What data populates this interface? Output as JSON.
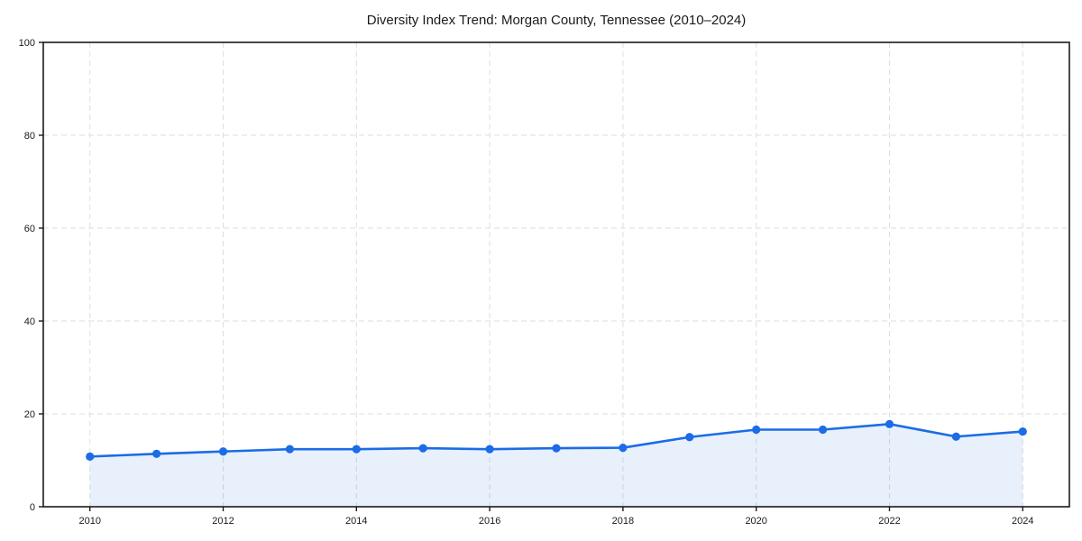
{
  "chart_data": {
    "type": "line",
    "title": "Diversity Index Trend: Morgan County, Tennessee (2010–2024)",
    "xlabel": "",
    "ylabel": "",
    "x": [
      2010,
      2011,
      2012,
      2013,
      2014,
      2015,
      2016,
      2017,
      2018,
      2019,
      2020,
      2021,
      2022,
      2023,
      2024
    ],
    "series": [
      {
        "name": "Diversity Index",
        "values": [
          10.8,
          11.4,
          11.9,
          12.4,
          12.4,
          12.6,
          12.4,
          12.6,
          12.7,
          15.0,
          16.6,
          16.6,
          17.8,
          15.1,
          16.2
        ]
      }
    ],
    "xlim": [
      2009.3,
      2024.7
    ],
    "ylim": [
      0,
      100
    ],
    "x_ticks": [
      2010,
      2012,
      2014,
      2016,
      2018,
      2020,
      2022,
      2024
    ],
    "y_ticks": [
      0,
      20,
      40,
      60,
      80,
      100
    ],
    "grid": true,
    "grid_style": "dashed",
    "legend": "none",
    "marker": "circle",
    "colors": {
      "line": "#1b6ce6",
      "fill": "rgba(27, 108, 230, 0.10)",
      "grid": "#dedede",
      "axis": "#1a1a1a",
      "text": "#1a1a1a",
      "background": "#ffffff"
    }
  }
}
